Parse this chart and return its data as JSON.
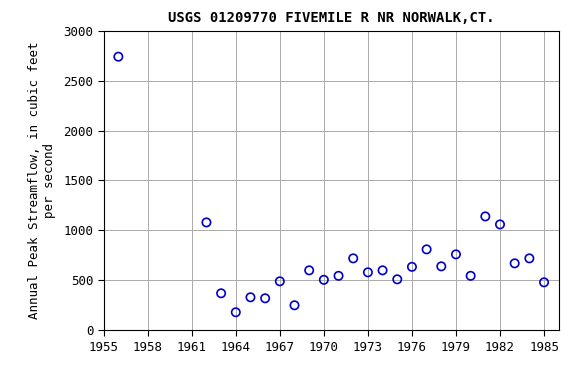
{
  "title": "USGS 01209770 FIVEMILE R NR NORWALK,CT.",
  "ylabel_line1": "Annual Peak Streamflow, in cubic feet",
  "ylabel_line2": "per second",
  "years": [
    1956,
    1962,
    1963,
    1964,
    1965,
    1966,
    1967,
    1968,
    1969,
    1970,
    1971,
    1972,
    1973,
    1974,
    1975,
    1976,
    1977,
    1978,
    1979,
    1980,
    1981,
    1982,
    1983,
    1984,
    1985
  ],
  "values": [
    2740,
    1080,
    370,
    180,
    330,
    320,
    490,
    250,
    600,
    505,
    545,
    720,
    580,
    600,
    510,
    635,
    810,
    640,
    760,
    545,
    1140,
    1060,
    670,
    720,
    480
  ],
  "marker_color": "#0000CC",
  "marker_size": 6,
  "marker_lw": 1.2,
  "xlim": [
    1955,
    1986
  ],
  "ylim": [
    0,
    3000
  ],
  "xticks": [
    1955,
    1958,
    1961,
    1964,
    1967,
    1970,
    1973,
    1976,
    1979,
    1982,
    1985
  ],
  "yticks": [
    0,
    500,
    1000,
    1500,
    2000,
    2500,
    3000
  ],
  "grid_color": "#aaaaaa",
  "bg_color": "#ffffff",
  "title_fontsize": 10,
  "label_fontsize": 9,
  "tick_fontsize": 9
}
